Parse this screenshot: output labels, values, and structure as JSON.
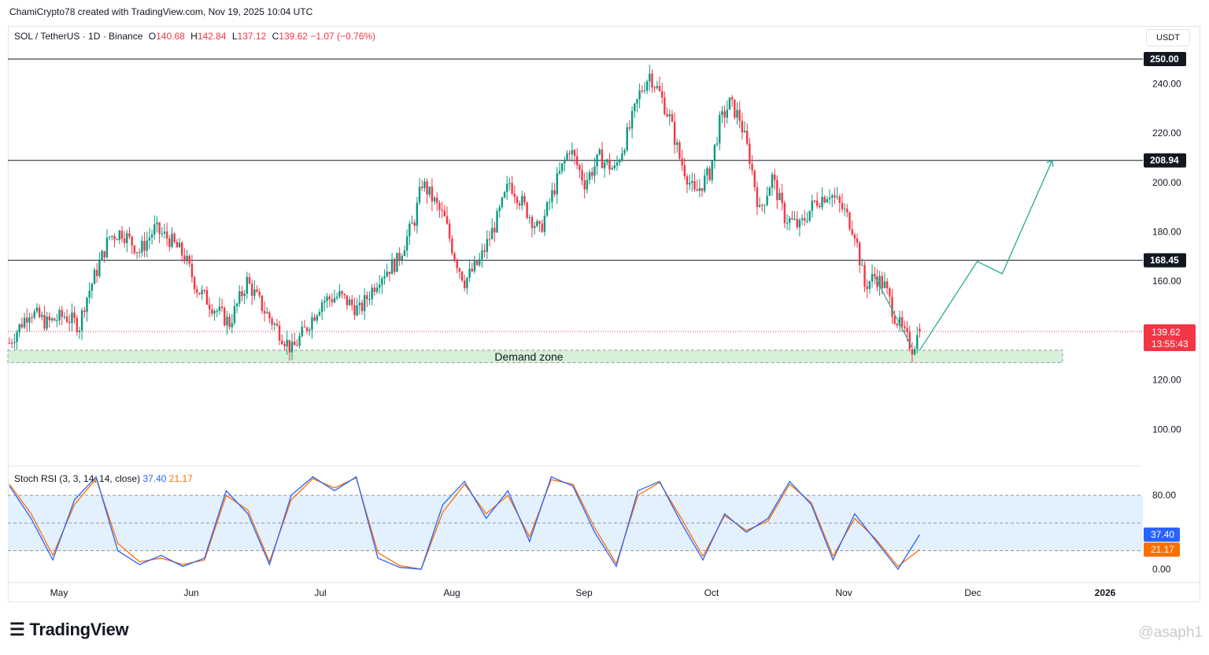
{
  "header": {
    "attribution": "ChamiCrypto78 created with TradingView.com, Nov 19, 2025 10:04 UTC"
  },
  "legend": {
    "symbol": "SOL / TetherUS · 1D · Binance",
    "open_label": "O",
    "open": "140.68",
    "high_label": "H",
    "high": "142.84",
    "low_label": "L",
    "low": "137.12",
    "close_label": "C",
    "close": "139.62",
    "change": "−1.07 (−0.76%)"
  },
  "currency": "USDT",
  "price_axis": {
    "ticks": [
      "240.00",
      "220.00",
      "200.00",
      "180.00",
      "160.00",
      "120.00",
      "100.00"
    ]
  },
  "levels": [
    {
      "label": "250.00",
      "value": 250.0
    },
    {
      "label": "208.94",
      "value": 208.94
    },
    {
      "label": "168.45",
      "value": 168.45
    }
  ],
  "current_price": {
    "label": "139.62",
    "countdown": "13:55:43",
    "value": 139.62
  },
  "demand_zone": {
    "label": "Demand zone",
    "low": 127,
    "high": 132
  },
  "time_axis": {
    "labels": [
      "May",
      "Jun",
      "Jul",
      "Aug",
      "Sep",
      "Oct",
      "Nov",
      "Dec",
      "2026"
    ]
  },
  "stoch_rsi": {
    "title": "Stoch RSI (3, 3, 14, 14, close)",
    "k": "37.40",
    "d": "21.17",
    "axis_ticks": [
      "80.00",
      "0.00"
    ],
    "band_upper": 80,
    "band_middle": 50,
    "band_lower": 20
  },
  "footer": {
    "brand": "TradingView",
    "watermark": "@asaph1"
  },
  "colors": {
    "up": "#089981",
    "down": "#f23645",
    "k": "#2962ff",
    "d": "#ff6d00",
    "zone": "#d7f0d8"
  },
  "chart_data": {
    "type": "candlestick",
    "title": "SOL / TetherUS · 1D · Binance",
    "ylim": [
      92,
      262
    ],
    "x_labels": [
      "May",
      "Jun",
      "Jul",
      "Aug",
      "Sep",
      "Oct",
      "Nov",
      "Dec",
      "2026"
    ],
    "close_approx": [
      [
        0,
        135
      ],
      [
        8,
        148
      ],
      [
        15,
        143
      ],
      [
        22,
        146
      ],
      [
        28,
        142
      ],
      [
        30,
        151
      ],
      [
        40,
        178
      ],
      [
        45,
        180
      ],
      [
        52,
        172
      ],
      [
        58,
        181
      ],
      [
        64,
        177
      ],
      [
        70,
        170
      ],
      [
        75,
        157
      ],
      [
        82,
        149
      ],
      [
        88,
        143
      ],
      [
        95,
        160
      ],
      [
        102,
        148
      ],
      [
        109,
        138
      ],
      [
        113,
        132
      ],
      [
        118,
        140
      ],
      [
        125,
        152
      ],
      [
        132,
        154
      ],
      [
        140,
        148
      ],
      [
        148,
        162
      ],
      [
        155,
        168
      ],
      [
        162,
        185
      ],
      [
        165,
        200
      ],
      [
        170,
        192
      ],
      [
        174,
        185
      ],
      [
        178,
        170
      ],
      [
        182,
        160
      ],
      [
        188,
        168
      ],
      [
        195,
        185
      ],
      [
        200,
        200
      ],
      [
        206,
        190
      ],
      [
        212,
        180
      ],
      [
        218,
        198
      ],
      [
        224,
        214
      ],
      [
        230,
        200
      ],
      [
        236,
        210
      ],
      [
        242,
        205
      ],
      [
        248,
        222
      ],
      [
        252,
        236
      ],
      [
        256,
        244
      ],
      [
        260,
        236
      ],
      [
        264,
        226
      ],
      [
        268,
        210
      ],
      [
        274,
        195
      ],
      [
        280,
        204
      ],
      [
        284,
        224
      ],
      [
        288,
        232
      ],
      [
        292,
        226
      ],
      [
        296,
        210
      ],
      [
        300,
        188
      ],
      [
        305,
        202
      ],
      [
        310,
        186
      ],
      [
        316,
        182
      ],
      [
        322,
        192
      ],
      [
        328,
        196
      ],
      [
        334,
        188
      ],
      [
        338,
        180
      ],
      [
        342,
        158
      ],
      [
        346,
        162
      ],
      [
        350,
        158
      ],
      [
        354,
        146
      ],
      [
        358,
        138
      ],
      [
        361,
        133
      ],
      [
        364,
        139.62
      ]
    ],
    "projection_path": [
      [
        364,
        132
      ],
      [
        387,
        168
      ],
      [
        397,
        163
      ],
      [
        417,
        208.94
      ]
    ],
    "stoch_k_approx": [
      90,
      55,
      10,
      75,
      100,
      20,
      5,
      15,
      3,
      12,
      85,
      60,
      5,
      80,
      100,
      85,
      100,
      12,
      2,
      0,
      70,
      95,
      55,
      85,
      30,
      100,
      90,
      40,
      3,
      85,
      95,
      50,
      10,
      60,
      40,
      55,
      95,
      70,
      10,
      60,
      30,
      0,
      37.4
    ],
    "stoch_d_approx": [
      92,
      60,
      15,
      70,
      98,
      28,
      8,
      12,
      5,
      10,
      80,
      64,
      8,
      75,
      98,
      88,
      99,
      18,
      4,
      0,
      62,
      92,
      60,
      80,
      35,
      97,
      92,
      45,
      6,
      80,
      94,
      55,
      14,
      58,
      42,
      52,
      92,
      72,
      14,
      55,
      32,
      3,
      21.17
    ]
  }
}
